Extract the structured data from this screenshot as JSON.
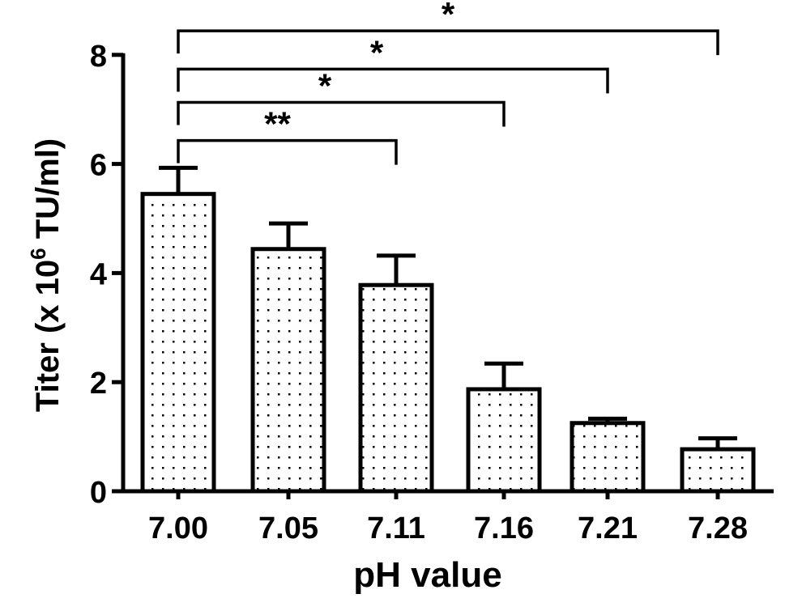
{
  "chart_data": {
    "type": "bar",
    "title": "",
    "xlabel": "pH value",
    "ylabel": "Titer (x 10",
    "ylabel_exponent": "6",
    "ylabel_suffix": " TU/ml)",
    "ylim": [
      0,
      8
    ],
    "yticks": [
      "0",
      "2",
      "4",
      "6",
      "8"
    ],
    "categories": [
      "7.00",
      "7.05",
      "7.11",
      "7.16",
      "7.21",
      "7.28"
    ],
    "values": [
      5.45,
      4.44,
      3.78,
      1.87,
      1.25,
      0.77
    ],
    "error_upper": [
      5.93,
      4.91,
      4.32,
      2.34,
      1.33,
      0.97
    ],
    "fill_pattern": "dotted",
    "significance": [
      {
        "from": "7.00",
        "to": "7.11",
        "label": "**",
        "level": 6.43
      },
      {
        "from": "7.00",
        "to": "7.16",
        "label": "*",
        "level": 7.13
      },
      {
        "from": "7.00",
        "to": "7.21",
        "label": "*",
        "level": 7.74
      },
      {
        "from": "7.00",
        "to": "7.28",
        "label": "*",
        "level": 8.44
      }
    ],
    "grid": false,
    "legend": "none"
  }
}
